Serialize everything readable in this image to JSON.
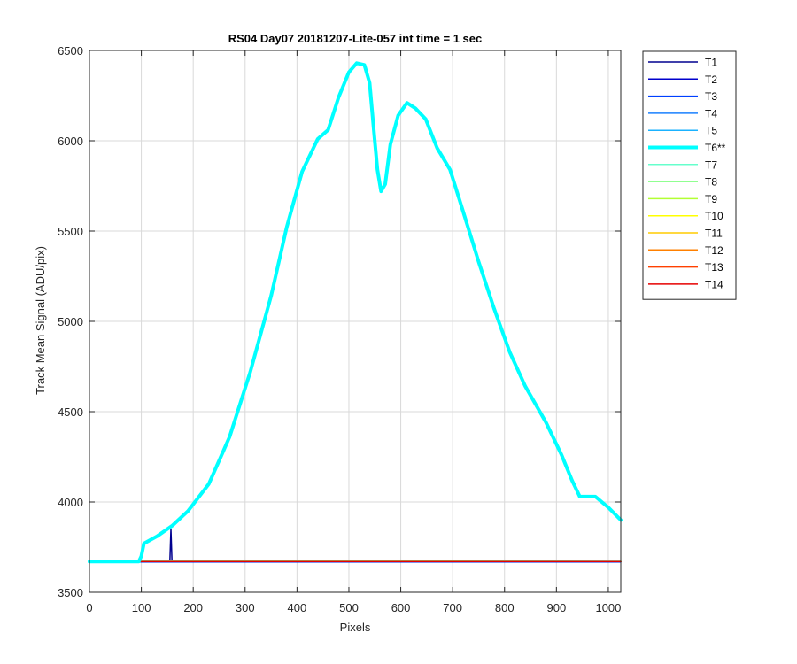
{
  "chart_data": {
    "type": "line",
    "title": "RS04 Day07 20181207-Lite-057 int time = 1 sec",
    "xlabel": "Pixels",
    "ylabel": "Track Mean Signal (ADU/pix)",
    "xlim": [
      0,
      1024
    ],
    "ylim": [
      3500,
      6500
    ],
    "xticks": [
      0,
      100,
      200,
      300,
      400,
      500,
      600,
      700,
      800,
      900,
      1000
    ],
    "yticks": [
      3500,
      4000,
      4500,
      5000,
      5500,
      6000,
      6500
    ],
    "grid": true,
    "legend_position": "outside-right-top",
    "series": [
      {
        "name": "T1",
        "color": "#00008f",
        "width": 1.5,
        "points": [
          [
            0,
            3670
          ],
          [
            150,
            3670
          ],
          [
            155,
            3670
          ],
          [
            157,
            3850
          ],
          [
            159,
            3670
          ],
          [
            1024,
            3670
          ]
        ]
      },
      {
        "name": "T2",
        "color": "#0000cc",
        "width": 1.5,
        "points": [
          [
            0,
            3668
          ],
          [
            1024,
            3668
          ]
        ]
      },
      {
        "name": "T3",
        "color": "#0040ff",
        "width": 1.5,
        "points": [
          [
            0,
            3669
          ],
          [
            1024,
            3669
          ]
        ]
      },
      {
        "name": "T4",
        "color": "#1a80ff",
        "width": 1.5,
        "points": [
          [
            0,
            3670
          ],
          [
            1024,
            3670
          ]
        ]
      },
      {
        "name": "T5",
        "color": "#1ab2ff",
        "width": 1.5,
        "points": [
          [
            0,
            3670
          ],
          [
            1024,
            3670
          ]
        ]
      },
      {
        "name": "T6**",
        "color": "#00ffff",
        "width": 4,
        "points": [
          [
            0,
            3670
          ],
          [
            95,
            3670
          ],
          [
            100,
            3700
          ],
          [
            105,
            3770
          ],
          [
            130,
            3810
          ],
          [
            160,
            3870
          ],
          [
            190,
            3950
          ],
          [
            230,
            4100
          ],
          [
            270,
            4360
          ],
          [
            310,
            4720
          ],
          [
            350,
            5140
          ],
          [
            380,
            5520
          ],
          [
            410,
            5830
          ],
          [
            440,
            6010
          ],
          [
            460,
            6060
          ],
          [
            480,
            6240
          ],
          [
            500,
            6380
          ],
          [
            515,
            6430
          ],
          [
            530,
            6420
          ],
          [
            540,
            6320
          ],
          [
            548,
            6060
          ],
          [
            555,
            5840
          ],
          [
            562,
            5720
          ],
          [
            570,
            5760
          ],
          [
            580,
            5980
          ],
          [
            595,
            6140
          ],
          [
            612,
            6210
          ],
          [
            628,
            6180
          ],
          [
            648,
            6120
          ],
          [
            670,
            5960
          ],
          [
            695,
            5840
          ],
          [
            720,
            5610
          ],
          [
            750,
            5330
          ],
          [
            780,
            5070
          ],
          [
            810,
            4830
          ],
          [
            840,
            4640
          ],
          [
            880,
            4440
          ],
          [
            910,
            4260
          ],
          [
            930,
            4120
          ],
          [
            945,
            4030
          ],
          [
            955,
            4030
          ],
          [
            975,
            4030
          ],
          [
            1000,
            3970
          ],
          [
            1024,
            3900
          ]
        ]
      },
      {
        "name": "T7",
        "color": "#66ffcc",
        "width": 1.5,
        "points": [
          [
            0,
            3672
          ],
          [
            500,
            3676
          ],
          [
            1024,
            3672
          ]
        ]
      },
      {
        "name": "T8",
        "color": "#80ff80",
        "width": 1.5,
        "points": [
          [
            0,
            3671
          ],
          [
            500,
            3674
          ],
          [
            1024,
            3671
          ]
        ]
      },
      {
        "name": "T9",
        "color": "#b2ff33",
        "width": 1.5,
        "points": [
          [
            0,
            3670
          ],
          [
            1024,
            3670
          ]
        ]
      },
      {
        "name": "T10",
        "color": "#ffff00",
        "width": 1.5,
        "points": [
          [
            0,
            3670
          ],
          [
            1024,
            3670
          ]
        ]
      },
      {
        "name": "T11",
        "color": "#ffcc00",
        "width": 1.5,
        "points": [
          [
            0,
            3670
          ],
          [
            1024,
            3670
          ]
        ]
      },
      {
        "name": "T12",
        "color": "#ff8000",
        "width": 1.5,
        "points": [
          [
            0,
            3670
          ],
          [
            1024,
            3670
          ]
        ]
      },
      {
        "name": "T13",
        "color": "#ff4000",
        "width": 1.5,
        "points": [
          [
            0,
            3670
          ],
          [
            1024,
            3670
          ]
        ]
      },
      {
        "name": "T14",
        "color": "#e60000",
        "width": 1.5,
        "points": [
          [
            0,
            3670
          ],
          [
            1024,
            3670
          ]
        ]
      }
    ]
  }
}
